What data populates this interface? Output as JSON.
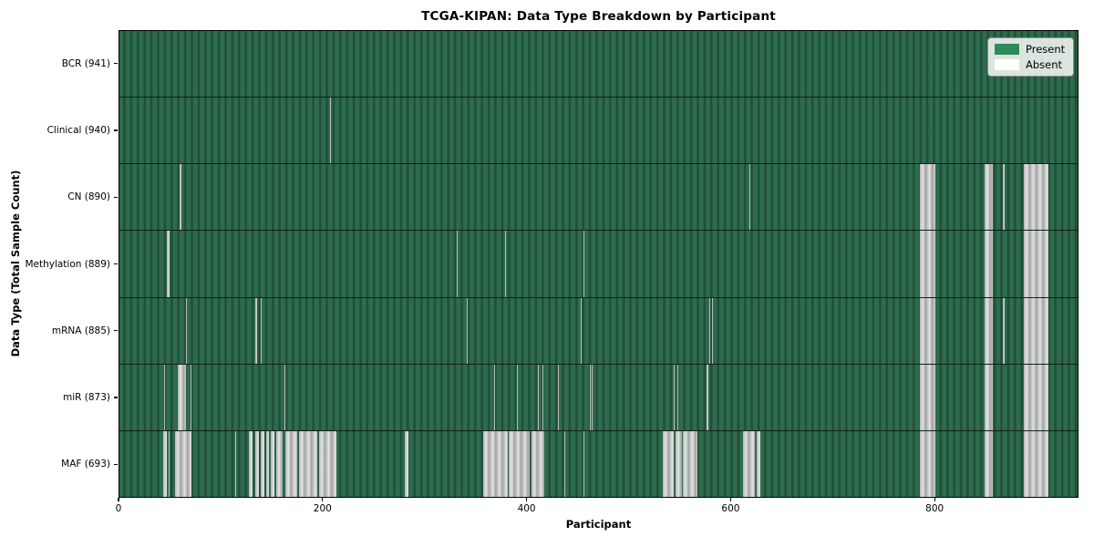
{
  "chart_data": {
    "type": "heatmap",
    "title": "TCGA-KIPAN: Data Type Breakdown by Participant",
    "xlabel": "Participant",
    "ylabel": "Data Type (Total Sample Count)",
    "n_participants": 941,
    "x_ticks": [
      0,
      200,
      400,
      600,
      800
    ],
    "grid": false,
    "legend_position": "upper right",
    "legend": [
      {
        "label": "Present",
        "color": "#2e8b57"
      },
      {
        "label": "Absent",
        "color": "#ffffff"
      }
    ],
    "cell_colors": {
      "present_fill": "#2d6c4e",
      "present_edge": "#1e4836",
      "absent_fill": "#c6c6c6"
    },
    "rows": [
      {
        "label": "BCR (941)",
        "data_type": "BCR",
        "present_count": 941,
        "absent_count": 0,
        "absent_ranges": []
      },
      {
        "label": "Clinical (940)",
        "data_type": "Clinical",
        "present_count": 940,
        "absent_count": 1,
        "absent_ranges": [
          [
            207,
            208
          ]
        ]
      },
      {
        "label": "CN (890)",
        "data_type": "CN",
        "present_count": 890,
        "absent_count": 51,
        "absent_ranges": [
          [
            59,
            61
          ],
          [
            619,
            620
          ],
          [
            786,
            801
          ],
          [
            850,
            858
          ],
          [
            868,
            869
          ],
          [
            888,
            912
          ]
        ]
      },
      {
        "label": "Methylation (889)",
        "data_type": "Methylation",
        "present_count": 889,
        "absent_count": 52,
        "absent_ranges": [
          [
            47,
            49
          ],
          [
            331,
            332
          ],
          [
            379,
            380
          ],
          [
            456,
            457
          ],
          [
            786,
            801
          ],
          [
            850,
            858
          ],
          [
            888,
            912
          ]
        ]
      },
      {
        "label": "mRNA (885)",
        "data_type": "mRNA",
        "present_count": 885,
        "absent_count": 56,
        "absent_ranges": [
          [
            65,
            66
          ],
          [
            133,
            135
          ],
          [
            139,
            140
          ],
          [
            341,
            342
          ],
          [
            453,
            454
          ],
          [
            579,
            580
          ],
          [
            582,
            583
          ],
          [
            786,
            801
          ],
          [
            850,
            858
          ],
          [
            868,
            869
          ],
          [
            888,
            912
          ]
        ]
      },
      {
        "label": "miR (873)",
        "data_type": "miR",
        "present_count": 873,
        "absent_count": 68,
        "absent_ranges": [
          [
            44,
            45
          ],
          [
            57,
            65
          ],
          [
            70,
            71
          ],
          [
            162,
            163
          ],
          [
            368,
            369
          ],
          [
            390,
            391
          ],
          [
            411,
            412
          ],
          [
            415,
            416
          ],
          [
            431,
            432
          ],
          [
            462,
            463
          ],
          [
            464,
            465
          ],
          [
            544,
            545
          ],
          [
            548,
            549
          ],
          [
            577,
            578
          ],
          [
            786,
            801
          ],
          [
            850,
            858
          ],
          [
            888,
            912
          ]
        ]
      },
      {
        "label": "MAF (693)",
        "data_type": "MAF",
        "present_count": 693,
        "absent_count": 248,
        "absent_ranges": [
          [
            43,
            47
          ],
          [
            48,
            49
          ],
          [
            55,
            71
          ],
          [
            114,
            115
          ],
          [
            127,
            131
          ],
          [
            133,
            137
          ],
          [
            139,
            142
          ],
          [
            144,
            147
          ],
          [
            149,
            152
          ],
          [
            154,
            160
          ],
          [
            163,
            175
          ],
          [
            176,
            194
          ],
          [
            196,
            213
          ],
          [
            280,
            284
          ],
          [
            357,
            381
          ],
          [
            382,
            403
          ],
          [
            405,
            417
          ],
          [
            437,
            438
          ],
          [
            456,
            457
          ],
          [
            534,
            544
          ],
          [
            546,
            552
          ],
          [
            553,
            568
          ],
          [
            612,
            624
          ],
          [
            626,
            629
          ],
          [
            786,
            801
          ],
          [
            850,
            858
          ],
          [
            888,
            912
          ]
        ]
      }
    ]
  }
}
